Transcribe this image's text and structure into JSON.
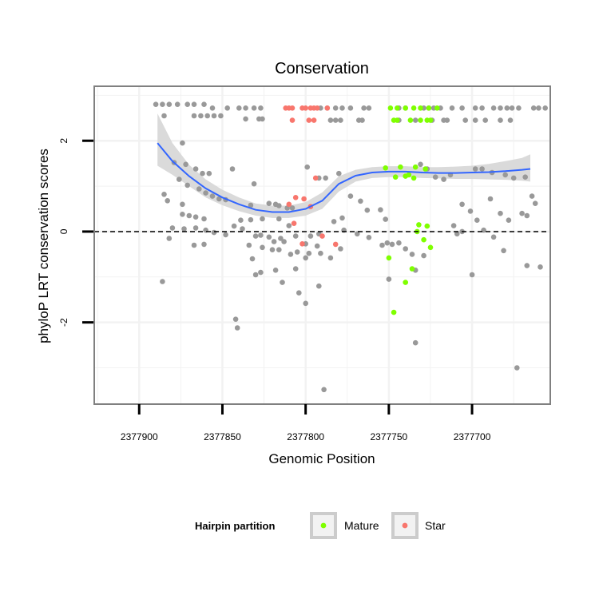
{
  "chart_data": {
    "type": "scatter",
    "title": "Conservation",
    "xlabel": "Genomic Position",
    "ylabel": "phyloP LRT conservation scores",
    "x_reversed": true,
    "xlim": [
      2377927,
      2377653
    ],
    "ylim": [
      -3.8,
      3.2
    ],
    "x_ticks": [
      2377900,
      2377850,
      2377800,
      2377750,
      2377700
    ],
    "x_tick_labels": [
      "2377900",
      "2377850",
      "2377800",
      "2377750",
      "2377700"
    ],
    "y_ticks": [
      -2,
      0,
      2
    ],
    "y_tick_labels": [
      "-2",
      "0",
      "2"
    ],
    "reference_line": {
      "y": 0,
      "style": "dashed"
    },
    "colors": {
      "other": "#999999",
      "Mature": "#7fff00",
      "Star": "#f8766d",
      "smooth_line": "#3366ff",
      "ribbon": "#d6d6d6",
      "panel_border": "#808080",
      "grid": "#f2f2f2"
    },
    "legend": {
      "title": "Hairpin partition",
      "position": "bottom",
      "entries": [
        {
          "label": "Mature",
          "color": "#7fff00"
        },
        {
          "label": "Star",
          "color": "#f8766d"
        }
      ]
    },
    "smooth": {
      "x": [
        2377889,
        2377880,
        2377870,
        2377860,
        2377850,
        2377840,
        2377830,
        2377820,
        2377810,
        2377800,
        2377790,
        2377780,
        2377770,
        2377760,
        2377750,
        2377740,
        2377730,
        2377720,
        2377710,
        2377700,
        2377690,
        2377680,
        2377670,
        2377665
      ],
      "y": [
        1.95,
        1.55,
        1.22,
        0.95,
        0.75,
        0.6,
        0.48,
        0.43,
        0.43,
        0.5,
        0.68,
        1.05,
        1.23,
        1.3,
        1.32,
        1.32,
        1.3,
        1.29,
        1.29,
        1.3,
        1.31,
        1.33,
        1.36,
        1.38
      ],
      "lower": [
        1.45,
        1.25,
        1.0,
        0.75,
        0.58,
        0.45,
        0.35,
        0.3,
        0.3,
        0.35,
        0.5,
        0.88,
        1.1,
        1.18,
        1.2,
        1.2,
        1.18,
        1.17,
        1.16,
        1.16,
        1.15,
        1.14,
        1.12,
        1.1
      ],
      "upper": [
        2.6,
        1.95,
        1.47,
        1.15,
        0.92,
        0.75,
        0.62,
        0.57,
        0.57,
        0.65,
        0.86,
        1.22,
        1.36,
        1.42,
        1.44,
        1.44,
        1.42,
        1.42,
        1.43,
        1.45,
        1.49,
        1.55,
        1.62,
        1.7
      ]
    },
    "series": [
      {
        "name": "Other",
        "points": [
          [
            2377890,
            2.8
          ],
          [
            2377886,
            2.8
          ],
          [
            2377882,
            2.8
          ],
          [
            2377877,
            2.8
          ],
          [
            2377871,
            2.8
          ],
          [
            2377867,
            2.8
          ],
          [
            2377861,
            2.8
          ],
          [
            2377885,
            2.55
          ],
          [
            2377867,
            2.55
          ],
          [
            2377863,
            2.55
          ],
          [
            2377859,
            2.55
          ],
          [
            2377855,
            2.55
          ],
          [
            2377851,
            2.55
          ],
          [
            2377856,
            2.72
          ],
          [
            2377847,
            2.72
          ],
          [
            2377840,
            2.72
          ],
          [
            2377836,
            2.72
          ],
          [
            2377831,
            2.72
          ],
          [
            2377827,
            2.72
          ],
          [
            2377836,
            2.48
          ],
          [
            2377828,
            2.48
          ],
          [
            2377826,
            2.48
          ],
          [
            2377791,
            2.72
          ],
          [
            2377787,
            2.72
          ],
          [
            2377782,
            2.72
          ],
          [
            2377778,
            2.72
          ],
          [
            2377773,
            2.72
          ],
          [
            2377765,
            2.72
          ],
          [
            2377762,
            2.72
          ],
          [
            2377744,
            2.72
          ],
          [
            2377740,
            2.72
          ],
          [
            2377729,
            2.72
          ],
          [
            2377726,
            2.72
          ],
          [
            2377723,
            2.72
          ],
          [
            2377719,
            2.72
          ],
          [
            2377712,
            2.72
          ],
          [
            2377706,
            2.72
          ],
          [
            2377698,
            2.72
          ],
          [
            2377694,
            2.72
          ],
          [
            2377687,
            2.72
          ],
          [
            2377683,
            2.72
          ],
          [
            2377679,
            2.72
          ],
          [
            2377676,
            2.72
          ],
          [
            2377672,
            2.72
          ],
          [
            2377663,
            2.72
          ],
          [
            2377660,
            2.72
          ],
          [
            2377656,
            2.72
          ],
          [
            2377785,
            2.45
          ],
          [
            2377782,
            2.45
          ],
          [
            2377779,
            2.45
          ],
          [
            2377768,
            2.45
          ],
          [
            2377766,
            2.45
          ],
          [
            2377744,
            2.45
          ],
          [
            2377734,
            2.45
          ],
          [
            2377724,
            2.45
          ],
          [
            2377717,
            2.45
          ],
          [
            2377715,
            2.45
          ],
          [
            2377704,
            2.45
          ],
          [
            2377698,
            2.45
          ],
          [
            2377692,
            2.45
          ],
          [
            2377683,
            2.45
          ],
          [
            2377677,
            2.45
          ],
          [
            2377874,
            1.95
          ],
          [
            2377879,
            1.52
          ],
          [
            2377872,
            1.48
          ],
          [
            2377866,
            1.38
          ],
          [
            2377862,
            1.28
          ],
          [
            2377858,
            1.28
          ],
          [
            2377844,
            1.38
          ],
          [
            2377831,
            1.05
          ],
          [
            2377799,
            1.42
          ],
          [
            2377792,
            1.18
          ],
          [
            2377788,
            1.18
          ],
          [
            2377780,
            1.28
          ],
          [
            2377876,
            1.15
          ],
          [
            2377871,
            1.02
          ],
          [
            2377864,
            0.94
          ],
          [
            2377860,
            0.85
          ],
          [
            2377856,
            0.78
          ],
          [
            2377852,
            0.72
          ],
          [
            2377848,
            0.7
          ],
          [
            2377833,
            0.58
          ],
          [
            2377822,
            0.62
          ],
          [
            2377818,
            0.6
          ],
          [
            2377816,
            0.57
          ],
          [
            2377811,
            0.52
          ],
          [
            2377808,
            0.52
          ],
          [
            2377885,
            0.82
          ],
          [
            2377883,
            0.68
          ],
          [
            2377874,
            0.6
          ],
          [
            2377874,
            0.38
          ],
          [
            2377870,
            0.35
          ],
          [
            2377866,
            0.32
          ],
          [
            2377861,
            0.28
          ],
          [
            2377839,
            0.25
          ],
          [
            2377833,
            0.26
          ],
          [
            2377826,
            0.28
          ],
          [
            2377816,
            0.28
          ],
          [
            2377810,
            0.13
          ],
          [
            2377880,
            0.08
          ],
          [
            2377873,
            0.06
          ],
          [
            2377866,
            0.08
          ],
          [
            2377860,
            0.03
          ],
          [
            2377855,
            -0.02
          ],
          [
            2377848,
            -0.07
          ],
          [
            2377882,
            -0.15
          ],
          [
            2377867,
            -0.3
          ],
          [
            2377861,
            -0.28
          ],
          [
            2377843,
            0.12
          ],
          [
            2377838,
            0.06
          ],
          [
            2377830,
            -0.1
          ],
          [
            2377827,
            -0.08
          ],
          [
            2377822,
            -0.12
          ],
          [
            2377819,
            -0.22
          ],
          [
            2377815,
            -0.15
          ],
          [
            2377813,
            -0.22
          ],
          [
            2377806,
            -0.1
          ],
          [
            2377800,
            -0.27
          ],
          [
            2377797,
            -0.1
          ],
          [
            2377792,
            -0.05
          ],
          [
            2377834,
            -0.3
          ],
          [
            2377832,
            -0.6
          ],
          [
            2377826,
            -0.35
          ],
          [
            2377820,
            -0.4
          ],
          [
            2377816,
            -0.4
          ],
          [
            2377809,
            -0.5
          ],
          [
            2377805,
            -0.45
          ],
          [
            2377800,
            -0.58
          ],
          [
            2377798,
            -0.48
          ],
          [
            2377793,
            -0.32
          ],
          [
            2377791,
            -0.48
          ],
          [
            2377785,
            -0.58
          ],
          [
            2377779,
            -0.38
          ],
          [
            2377830,
            -0.95
          ],
          [
            2377827,
            -0.9
          ],
          [
            2377818,
            -0.85
          ],
          [
            2377814,
            -1.12
          ],
          [
            2377806,
            -0.82
          ],
          [
            2377804,
            -1.35
          ],
          [
            2377800,
            -1.58
          ],
          [
            2377792,
            -1.2
          ],
          [
            2377886,
            -1.1
          ],
          [
            2377842,
            -1.93
          ],
          [
            2377841,
            -2.12
          ],
          [
            2377789,
            -3.48
          ],
          [
            2377783,
            0.22
          ],
          [
            2377778,
            0.3
          ],
          [
            2377773,
            0.78
          ],
          [
            2377767,
            0.67
          ],
          [
            2377763,
            0.47
          ],
          [
            2377755,
            0.48
          ],
          [
            2377752,
            0.27
          ],
          [
            2377777,
            0.03
          ],
          [
            2377769,
            -0.05
          ],
          [
            2377762,
            -0.13
          ],
          [
            2377754,
            -0.3
          ],
          [
            2377751,
            -0.25
          ],
          [
            2377748,
            -0.28
          ],
          [
            2377744,
            -0.25
          ],
          [
            2377740,
            -0.38
          ],
          [
            2377736,
            -0.5
          ],
          [
            2377729,
            -0.53
          ],
          [
            2377750,
            -1.05
          ],
          [
            2377734,
            -0.85
          ],
          [
            2377734,
            -2.45
          ],
          [
            2377731,
            1.48
          ],
          [
            2377727,
            1.38
          ],
          [
            2377722,
            1.2
          ],
          [
            2377717,
            1.15
          ],
          [
            2377713,
            1.25
          ],
          [
            2377698,
            1.38
          ],
          [
            2377694,
            1.38
          ],
          [
            2377688,
            1.3
          ],
          [
            2377680,
            1.25
          ],
          [
            2377675,
            1.18
          ],
          [
            2377668,
            1.2
          ],
          [
            2377706,
            0.6
          ],
          [
            2377701,
            0.45
          ],
          [
            2377697,
            0.25
          ],
          [
            2377689,
            0.72
          ],
          [
            2377683,
            0.4
          ],
          [
            2377678,
            0.25
          ],
          [
            2377670,
            0.4
          ],
          [
            2377667,
            0.35
          ],
          [
            2377664,
            0.78
          ],
          [
            2377662,
            0.62
          ],
          [
            2377711,
            0.13
          ],
          [
            2377709,
            -0.05
          ],
          [
            2377706,
            0.0
          ],
          [
            2377693,
            0.03
          ],
          [
            2377687,
            -0.12
          ],
          [
            2377681,
            -0.42
          ],
          [
            2377700,
            -0.95
          ],
          [
            2377667,
            -0.75
          ],
          [
            2377659,
            -0.78
          ],
          [
            2377673,
            -3.0
          ]
        ]
      },
      {
        "name": "Star",
        "points": [
          [
            2377812,
            2.72
          ],
          [
            2377810,
            2.72
          ],
          [
            2377808,
            2.72
          ],
          [
            2377802,
            2.72
          ],
          [
            2377800,
            2.72
          ],
          [
            2377797,
            2.72
          ],
          [
            2377795,
            2.72
          ],
          [
            2377793,
            2.72
          ],
          [
            2377787,
            2.72
          ],
          [
            2377808,
            2.45
          ],
          [
            2377798,
            2.45
          ],
          [
            2377795,
            2.45
          ],
          [
            2377794,
            1.18
          ],
          [
            2377806,
            0.75
          ],
          [
            2377810,
            0.6
          ],
          [
            2377801,
            0.72
          ],
          [
            2377797,
            0.55
          ],
          [
            2377807,
            0.18
          ],
          [
            2377802,
            -0.27
          ],
          [
            2377790,
            -0.1
          ],
          [
            2377782,
            -0.28
          ]
        ]
      },
      {
        "name": "Mature",
        "points": [
          [
            2377749,
            2.72
          ],
          [
            2377745,
            2.72
          ],
          [
            2377740,
            2.72
          ],
          [
            2377735,
            2.72
          ],
          [
            2377731,
            2.72
          ],
          [
            2377726,
            2.72
          ],
          [
            2377721,
            2.72
          ],
          [
            2377747,
            2.45
          ],
          [
            2377745,
            2.45
          ],
          [
            2377737,
            2.45
          ],
          [
            2377731,
            2.45
          ],
          [
            2377727,
            2.45
          ],
          [
            2377725,
            2.45
          ],
          [
            2377752,
            1.4
          ],
          [
            2377743,
            1.42
          ],
          [
            2377738,
            1.25
          ],
          [
            2377734,
            1.42
          ],
          [
            2377728,
            1.38
          ],
          [
            2377746,
            1.2
          ],
          [
            2377740,
            1.22
          ],
          [
            2377735,
            1.18
          ],
          [
            2377732,
            0.15
          ],
          [
            2377727,
            0.12
          ],
          [
            2377733,
            0.0
          ],
          [
            2377729,
            -0.18
          ],
          [
            2377725,
            -0.35
          ],
          [
            2377750,
            -0.58
          ],
          [
            2377736,
            -0.82
          ],
          [
            2377740,
            -1.12
          ],
          [
            2377747,
            -1.78
          ]
        ]
      }
    ]
  }
}
